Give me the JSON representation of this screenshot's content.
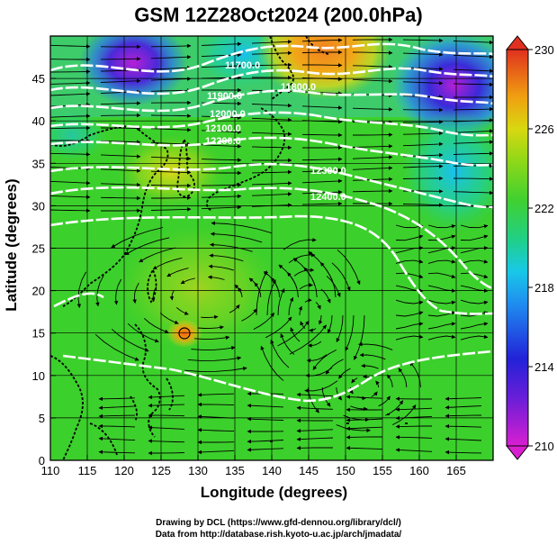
{
  "title": "GSM 12Z28Oct2024 (200.0hPa)",
  "axes": {
    "xlabel": "Longitude (degrees)",
    "ylabel": "Latitude  (degrees)",
    "x_ticks": [
      "110",
      "115",
      "120",
      "125",
      "130",
      "135",
      "140",
      "145",
      "150",
      "155",
      "160",
      "165"
    ],
    "y_ticks": [
      "0",
      "5",
      "10",
      "15",
      "20",
      "25",
      "30",
      "35",
      "40",
      "45"
    ],
    "xlim": [
      110,
      170
    ],
    "ylim": [
      0,
      50
    ]
  },
  "colorbar": {
    "ticks": [
      "210",
      "214",
      "218",
      "222",
      "226",
      "230"
    ],
    "range": [
      210,
      230
    ],
    "colors": [
      "#d81fd0",
      "#2222d8",
      "#18b8f0",
      "#20d070",
      "#60d020",
      "#d8d810",
      "#f07010",
      "#e03020"
    ]
  },
  "contour_labels": [
    "11700.0",
    "11800.0",
    "11900.0",
    "12000.0",
    "12100.0",
    "12200.0",
    "12300.0",
    "12400.0"
  ],
  "credits": {
    "line1": "Drawing by DCL (https://www.gfd-dennou.org/library/dcl/)",
    "line2": "Data from http://database.rish.kyoto-u.ac.jp/arch/jmadata/"
  }
}
